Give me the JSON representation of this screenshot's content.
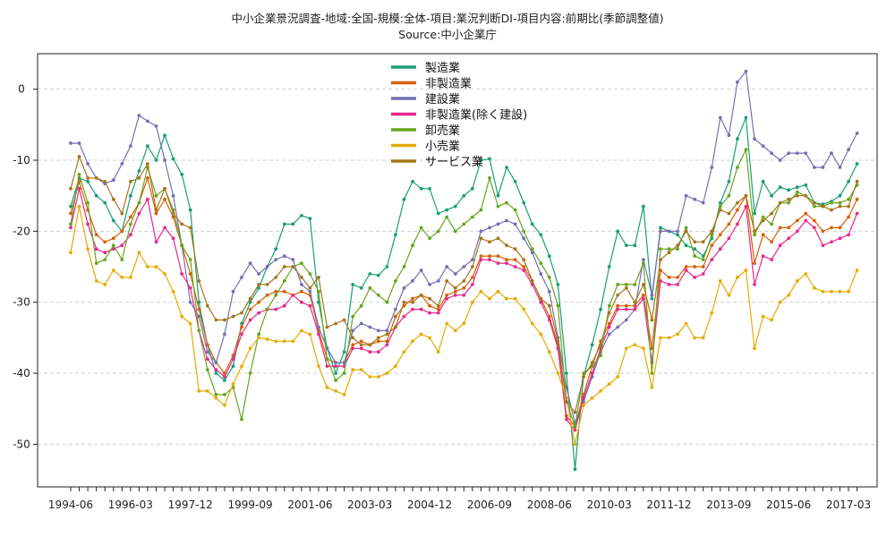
{
  "chart_data": {
    "type": "line",
    "title": "中小企業景況調査-地域:全国-規模:全体-項目:業況判断DI-項目内容:前期比(季節調整値)",
    "subtitle": "Source:中小企業庁",
    "xlabel": "",
    "ylabel": "",
    "ylim": [
      -56,
      5
    ],
    "yticks": [
      0,
      -10,
      -20,
      -30,
      -40,
      -50
    ],
    "xtick_labels": [
      "1994-06",
      "1996-03",
      "1997-12",
      "1999-09",
      "2001-06",
      "2003-03",
      "2004-12",
      "2006-09",
      "2008-06",
      "2010-03",
      "2011-12",
      "2013-09",
      "2015-06",
      "2017-03"
    ],
    "grid": true,
    "legend_position": "top-center",
    "x": [
      "1994-06",
      "1994-09",
      "1994-12",
      "1995-03",
      "1995-06",
      "1995-09",
      "1995-12",
      "1996-03",
      "1996-06",
      "1996-09",
      "1996-12",
      "1997-03",
      "1997-06",
      "1997-09",
      "1997-12",
      "1998-03",
      "1998-06",
      "1998-09",
      "1998-12",
      "1999-03",
      "1999-06",
      "1999-09",
      "1999-12",
      "2000-03",
      "2000-06",
      "2000-09",
      "2000-12",
      "2001-03",
      "2001-06",
      "2001-09",
      "2001-12",
      "2002-03",
      "2002-06",
      "2002-09",
      "2002-12",
      "2003-03",
      "2003-06",
      "2003-09",
      "2003-12",
      "2004-03",
      "2004-06",
      "2004-09",
      "2004-12",
      "2005-03",
      "2005-06",
      "2005-09",
      "2005-12",
      "2006-03",
      "2006-06",
      "2006-09",
      "2006-12",
      "2007-03",
      "2007-06",
      "2007-09",
      "2007-12",
      "2008-03",
      "2008-06",
      "2008-09",
      "2008-12",
      "2009-03",
      "2009-06",
      "2009-09",
      "2009-12",
      "2010-03",
      "2010-06",
      "2010-09",
      "2010-12",
      "2011-03",
      "2011-06",
      "2011-09",
      "2011-12",
      "2012-03",
      "2012-06",
      "2012-09",
      "2012-12",
      "2013-03",
      "2013-06",
      "2013-09",
      "2013-12",
      "2014-03",
      "2014-06",
      "2014-09",
      "2014-12",
      "2015-03",
      "2015-06",
      "2015-09",
      "2015-12",
      "2016-03",
      "2016-06",
      "2016-09",
      "2016-12",
      "2017-03",
      "2017-06"
    ],
    "series": [
      {
        "name": "製造業",
        "color": "#1b9e77",
        "values": [
          -16.5,
          -12.5,
          -13.0,
          -15.0,
          -16.0,
          -18.5,
          -20.0,
          -15.0,
          -11.5,
          -8.0,
          -10.0,
          -6.5,
          -9.8,
          -12.0,
          -17.0,
          -30.0,
          -36.0,
          -40.0,
          -41.0,
          -39.0,
          -33.0,
          -30.0,
          -28.0,
          -25.0,
          -22.5,
          -19.0,
          -19.0,
          -17.8,
          -18.2,
          -30.0,
          -36.5,
          -40.0,
          -37.0,
          -27.5,
          -28.0,
          -26.0,
          -26.2,
          -25.0,
          -20.5,
          -15.5,
          -13.0,
          -14.0,
          -14.0,
          -17.5,
          -17.0,
          -16.5,
          -15.0,
          -14.0,
          -10.0,
          -9.8,
          -15.0,
          -11.0,
          -13.0,
          -16.0,
          -19.0,
          -20.5,
          -23.5,
          -27.5,
          -40.0,
          -53.5,
          -40.5,
          -36.0,
          -31.0,
          -25.0,
          -20.0,
          -22.0,
          -22.0,
          -16.5,
          -29.5,
          -19.5,
          -20.0,
          -20.5,
          -22.0,
          -22.5,
          -23.5,
          -21.0,
          -16.0,
          -13.0,
          -7.0,
          -4.0,
          -17.5,
          -13.0,
          -15.0,
          -13.8,
          -14.2,
          -13.8,
          -13.5,
          -16.0,
          -16.2,
          -15.8,
          -15.0,
          -13.0,
          -10.5
        ]
      },
      {
        "name": "非製造業",
        "color": "#d95f02",
        "values": [
          -17.5,
          -13.0,
          -17.0,
          -20.5,
          -21.5,
          -21.0,
          -20.0,
          -18.0,
          -16.0,
          -12.5,
          -17.5,
          -15.5,
          -18.0,
          -22.0,
          -26.0,
          -31.0,
          -36.0,
          -38.5,
          -40.0,
          -37.5,
          -33.5,
          -31.0,
          -30.0,
          -29.0,
          -28.5,
          -28.5,
          -29.0,
          -28.5,
          -29.0,
          -34.0,
          -38.0,
          -38.5,
          -38.5,
          -36.0,
          -35.5,
          -36.0,
          -35.5,
          -35.5,
          -32.0,
          -30.5,
          -29.5,
          -29.0,
          -30.5,
          -31.0,
          -29.0,
          -28.5,
          -28.0,
          -26.5,
          -23.5,
          -23.5,
          -23.5,
          -24.0,
          -24.0,
          -25.0,
          -27.0,
          -29.5,
          -32.0,
          -36.0,
          -46.0,
          -47.5,
          -43.0,
          -39.0,
          -35.5,
          -33.0,
          -30.5,
          -30.5,
          -30.5,
          -29.0,
          -36.5,
          -25.5,
          -26.5,
          -26.5,
          -25.0,
          -25.0,
          -25.0,
          -22.0,
          -20.5,
          -19.0,
          -17.0,
          -15.0,
          -24.5,
          -20.5,
          -21.5,
          -19.5,
          -19.5,
          -18.5,
          -17.5,
          -18.5,
          -20.0,
          -19.5,
          -19.5,
          -18.0,
          -15.5
        ]
      },
      {
        "name": "建設業",
        "color": "#7570b3",
        "values": [
          -7.6,
          -7.6,
          -10.5,
          -12.5,
          -13.3,
          -12.8,
          -10.5,
          -8.0,
          -3.7,
          -4.5,
          -5.2,
          -10.0,
          -15.0,
          -22.0,
          -30.0,
          -32.0,
          -37.0,
          -38.5,
          -34.5,
          -28.5,
          -26.5,
          -24.5,
          -26.0,
          -25.0,
          -24.0,
          -23.5,
          -24.0,
          -27.5,
          -28.5,
          -33.5,
          -36.5,
          -38.5,
          -38.5,
          -34.0,
          -33.0,
          -33.5,
          -34.0,
          -34.0,
          -31.0,
          -28.0,
          -27.0,
          -25.5,
          -27.5,
          -27.0,
          -25.0,
          -26.0,
          -25.0,
          -24.0,
          -20.0,
          -19.5,
          -19.0,
          -18.5,
          -19.0,
          -21.0,
          -23.0,
          -26.0,
          -28.5,
          -35.0,
          -42.0,
          -47.0,
          -44.0,
          -40.5,
          -37.0,
          -34.5,
          -33.5,
          -32.5,
          -31.0,
          -24.0,
          -29.0,
          -20.0,
          -20.0,
          -20.0,
          -15.0,
          -15.5,
          -16.0,
          -11.0,
          -4.0,
          -6.5,
          1.0,
          2.5,
          -7.0,
          -8.0,
          -9.0,
          -10.0,
          -9.0,
          -9.0,
          -9.0,
          -11.0,
          -11.0,
          -9.0,
          -11.0,
          -8.5,
          -6.2
        ]
      },
      {
        "name": "非製造業(除く建設)",
        "color": "#e7298a",
        "values": [
          -19.5,
          -14.0,
          -19.0,
          -22.5,
          -23.0,
          -22.5,
          -22.0,
          -20.5,
          -17.5,
          -15.5,
          -21.5,
          -19.5,
          -21.0,
          -26.0,
          -28.0,
          -34.0,
          -38.0,
          -39.5,
          -40.5,
          -38.0,
          -34.5,
          -32.5,
          -31.5,
          -31.0,
          -31.0,
          -30.5,
          -29.0,
          -30.0,
          -30.5,
          -34.5,
          -39.0,
          -39.0,
          -39.0,
          -36.5,
          -36.5,
          -37.0,
          -37.0,
          -36.0,
          -33.5,
          -32.0,
          -31.0,
          -31.0,
          -31.5,
          -31.5,
          -29.5,
          -29.0,
          -29.0,
          -27.5,
          -24.0,
          -24.0,
          -24.5,
          -24.5,
          -25.0,
          -25.5,
          -27.5,
          -30.0,
          -32.5,
          -36.5,
          -46.5,
          -48.0,
          -43.5,
          -40.0,
          -36.5,
          -33.5,
          -31.0,
          -31.0,
          -31.0,
          -29.5,
          -38.5,
          -27.0,
          -27.5,
          -27.5,
          -25.5,
          -26.5,
          -26.0,
          -24.0,
          -22.5,
          -21.0,
          -19.0,
          -16.5,
          -27.5,
          -23.5,
          -24.0,
          -22.0,
          -21.0,
          -20.0,
          -18.5,
          -19.5,
          -22.0,
          -21.5,
          -21.0,
          -20.5,
          -17.5
        ]
      },
      {
        "name": "卸売業",
        "color": "#66a61e",
        "values": [
          -19.0,
          -12.0,
          -16.0,
          -24.5,
          -24.0,
          -22.0,
          -24.0,
          -19.0,
          -16.0,
          -11.0,
          -15.0,
          -14.0,
          -17.0,
          -22.0,
          -24.0,
          -34.0,
          -39.5,
          -43.0,
          -43.0,
          -42.0,
          -46.5,
          -40.0,
          -34.5,
          -31.0,
          -29.0,
          -27.0,
          -25.0,
          -24.5,
          -26.0,
          -28.5,
          -38.0,
          -41.0,
          -40.0,
          -32.0,
          -30.5,
          -28.0,
          -29.0,
          -30.0,
          -27.0,
          -25.0,
          -22.0,
          -19.5,
          -21.0,
          -20.0,
          -18.0,
          -20.0,
          -19.0,
          -18.0,
          -17.0,
          -12.5,
          -16.5,
          -16.0,
          -17.0,
          -20.0,
          -22.5,
          -24.5,
          -26.5,
          -30.5,
          -44.0,
          -47.5,
          -40.0,
          -39.0,
          -37.5,
          -30.5,
          -27.5,
          -27.5,
          -27.5,
          -24.5,
          -40.0,
          -22.5,
          -22.5,
          -22.5,
          -19.5,
          -23.5,
          -24.0,
          -20.5,
          -16.5,
          -15.0,
          -11.0,
          -8.5,
          -20.5,
          -18.0,
          -19.0,
          -16.0,
          -16.0,
          -14.5,
          -15.0,
          -16.5,
          -16.5,
          -16.0,
          -16.0,
          -15.5,
          -13.5
        ]
      },
      {
        "name": "小売業",
        "color": "#e6ab02",
        "values": [
          -23.0,
          -16.5,
          -22.5,
          -27.0,
          -27.5,
          -25.5,
          -26.5,
          -26.5,
          -23.0,
          -25.0,
          -25.0,
          -26.0,
          -28.5,
          -32.0,
          -33.0,
          -42.5,
          -42.5,
          -43.5,
          -44.5,
          -41.5,
          -39.0,
          -36.5,
          -35.0,
          -35.2,
          -35.5,
          -35.5,
          -35.5,
          -34.0,
          -34.5,
          -39.0,
          -42.0,
          -42.5,
          -43.0,
          -39.5,
          -39.5,
          -40.5,
          -40.5,
          -40.0,
          -39.0,
          -37.0,
          -35.5,
          -34.5,
          -35.0,
          -37.0,
          -33.0,
          -34.0,
          -33.0,
          -30.0,
          -28.5,
          -29.5,
          -28.5,
          -29.5,
          -29.5,
          -31.0,
          -33.0,
          -34.5,
          -37.0,
          -40.0,
          -43.5,
          -50.0,
          -44.5,
          -43.5,
          -42.5,
          -41.5,
          -40.5,
          -36.5,
          -36.0,
          -36.5,
          -42.0,
          -35.0,
          -35.0,
          -34.5,
          -33.0,
          -35.0,
          -35.0,
          -31.5,
          -27.0,
          -29.0,
          -26.5,
          -25.5,
          -36.5,
          -32.0,
          -32.5,
          -30.0,
          -29.0,
          -27.0,
          -26.0,
          -28.0,
          -28.5,
          -28.5,
          -28.5,
          -28.5,
          -25.5
        ]
      },
      {
        "name": "サービス業",
        "color": "#a6761d",
        "values": [
          -14.0,
          -9.5,
          -12.5,
          -12.5,
          -13.0,
          -15.5,
          -17.5,
          -13.0,
          -12.5,
          -10.5,
          -17.0,
          -14.0,
          -17.5,
          -19.0,
          -19.5,
          -27.0,
          -30.5,
          -32.5,
          -32.5,
          -32.0,
          -31.5,
          -29.5,
          -27.5,
          -27.5,
          -26.5,
          -25.0,
          -25.0,
          -26.5,
          -28.0,
          -26.5,
          -33.5,
          -33.0,
          -32.5,
          -35.0,
          -36.0,
          -36.0,
          -35.0,
          -34.5,
          -33.5,
          -30.0,
          -30.0,
          -29.0,
          -29.5,
          -30.5,
          -27.0,
          -28.0,
          -27.0,
          -25.0,
          -21.0,
          -21.5,
          -21.0,
          -22.0,
          -22.5,
          -24.0,
          -27.0,
          -29.5,
          -30.5,
          -35.5,
          -44.0,
          -45.5,
          -40.5,
          -38.5,
          -36.0,
          -31.5,
          -29.0,
          -28.0,
          -30.0,
          -27.5,
          -32.5,
          -24.0,
          -23.0,
          -22.0,
          -20.0,
          -21.5,
          -21.5,
          -20.0,
          -17.0,
          -17.5,
          -16.0,
          -15.0,
          -20.0,
          -18.5,
          -17.5,
          -16.0,
          -15.5,
          -15.0,
          -15.0,
          -16.0,
          -16.5,
          -17.0,
          -16.5,
          -16.5,
          -13.0
        ]
      }
    ]
  }
}
